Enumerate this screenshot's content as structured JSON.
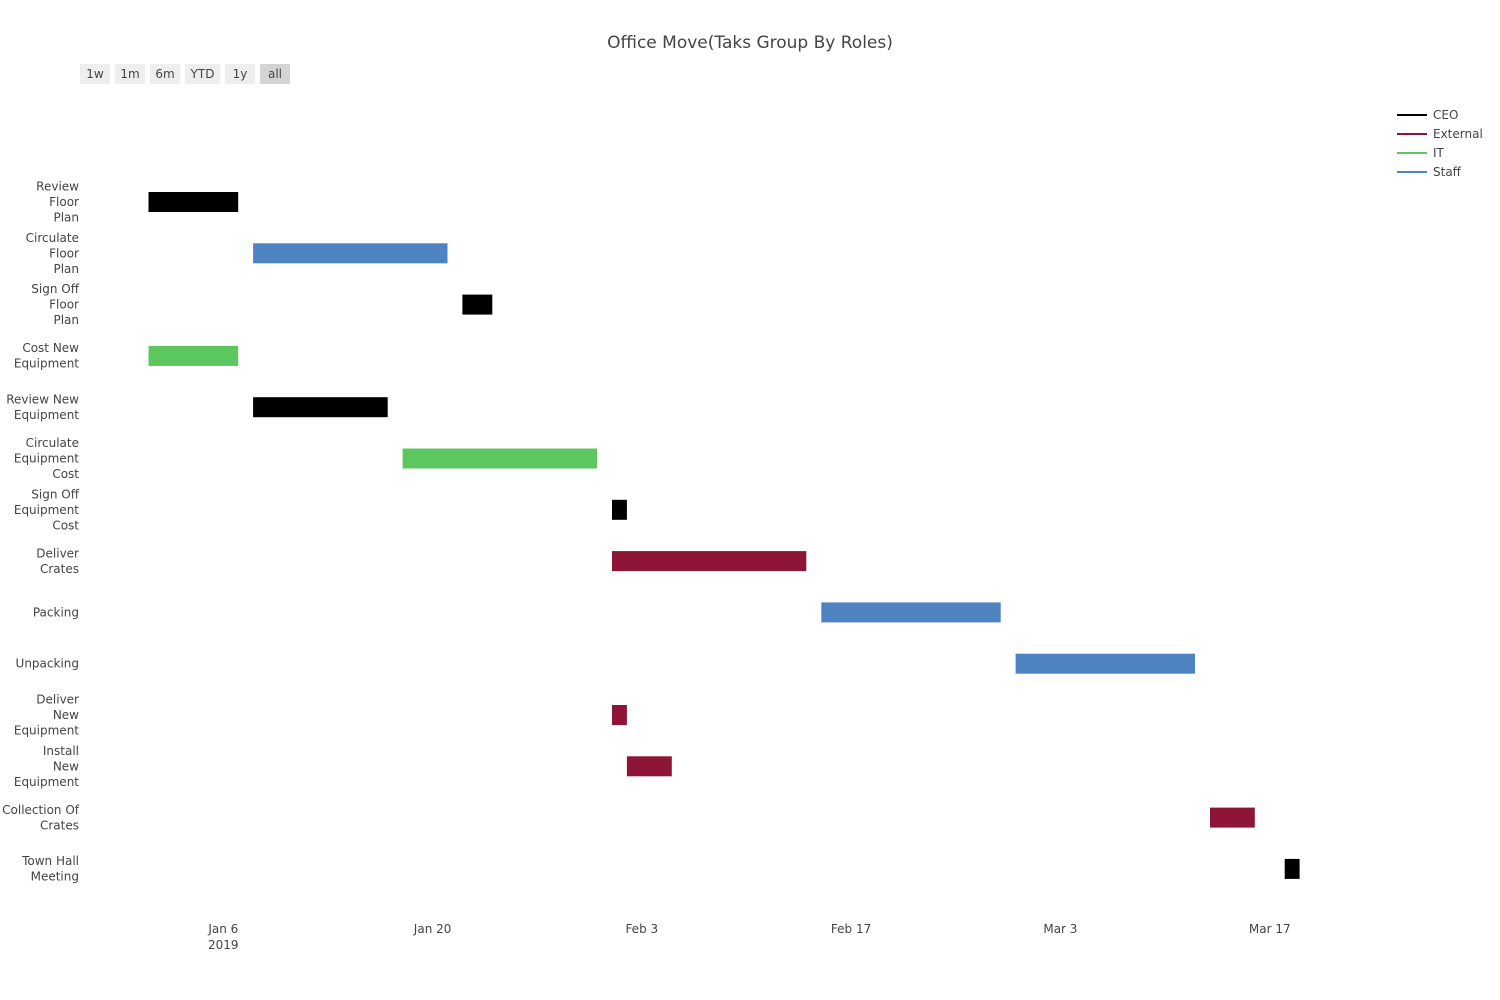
{
  "chart": {
    "title": "Office Move(Taks Group By Roles)",
    "range_buttons": [
      {
        "label": "1w",
        "active": false
      },
      {
        "label": "1m",
        "active": false
      },
      {
        "label": "6m",
        "active": false
      },
      {
        "label": "YTD",
        "active": false
      },
      {
        "label": "1y",
        "active": false
      },
      {
        "label": "all",
        "active": true
      }
    ],
    "legend": [
      {
        "label": "CEO",
        "color": "#000000"
      },
      {
        "label": "External",
        "color": "#8e1537"
      },
      {
        "label": "IT",
        "color": "#5bc75e"
      },
      {
        "label": "Staff",
        "color": "#4f83c1"
      }
    ]
  },
  "chart_data": {
    "type": "gantt",
    "title": "Office Move(Taks Group By Roles)",
    "xlabel": "",
    "ylabel": "",
    "x_axis": {
      "type": "date",
      "range": [
        "2019-01-01",
        "2019-03-30"
      ],
      "ticks": [
        {
          "date": "2019-01-06",
          "label": "Jan 6",
          "sublabel": "2019"
        },
        {
          "date": "2019-01-20",
          "label": "Jan 20",
          "sublabel": ""
        },
        {
          "date": "2019-02-03",
          "label": "Feb 3",
          "sublabel": ""
        },
        {
          "date": "2019-02-17",
          "label": "Feb 17",
          "sublabel": ""
        },
        {
          "date": "2019-03-03",
          "label": "Mar 3",
          "sublabel": ""
        },
        {
          "date": "2019-03-17",
          "label": "Mar 17",
          "sublabel": ""
        }
      ]
    },
    "grid": false,
    "legend_position": "top-right",
    "tasks": [
      {
        "task": "Review Floor Plan",
        "label_lines": [
          "Review",
          "Floor",
          "Plan"
        ],
        "role": "CEO",
        "start": "2019-01-01",
        "finish": "2019-01-07"
      },
      {
        "task": "Circulate Floor Plan",
        "label_lines": [
          "Circulate",
          "Floor",
          "Plan"
        ],
        "role": "Staff",
        "start": "2019-01-08",
        "finish": "2019-01-21"
      },
      {
        "task": "Sign Off Floor Plan",
        "label_lines": [
          "Sign Off",
          "Floor",
          "Plan"
        ],
        "role": "CEO",
        "start": "2019-01-22",
        "finish": "2019-01-24"
      },
      {
        "task": "Cost New Equipment",
        "label_lines": [
          "Cost New",
          "Equipment"
        ],
        "role": "IT",
        "start": "2019-01-01",
        "finish": "2019-01-07"
      },
      {
        "task": "Review New Equipment",
        "label_lines": [
          "Review New",
          "Equipment"
        ],
        "role": "CEO",
        "start": "2019-01-08",
        "finish": "2019-01-17"
      },
      {
        "task": "Circulate Equipment Cost",
        "label_lines": [
          "Circulate",
          "Equipment",
          "Cost"
        ],
        "role": "IT",
        "start": "2019-01-18",
        "finish": "2019-01-31"
      },
      {
        "task": "Sign Off Equipment Cost",
        "label_lines": [
          "Sign Off",
          "Equipment",
          "Cost"
        ],
        "role": "CEO",
        "start": "2019-02-01",
        "finish": "2019-02-02"
      },
      {
        "task": "Deliver Crates",
        "label_lines": [
          "Deliver",
          "Crates"
        ],
        "role": "External",
        "start": "2019-02-01",
        "finish": "2019-02-14"
      },
      {
        "task": "Packing",
        "label_lines": [
          "Packing"
        ],
        "role": "Staff",
        "start": "2019-02-15",
        "finish": "2019-02-27"
      },
      {
        "task": "Unpacking",
        "label_lines": [
          "Unpacking"
        ],
        "role": "Staff",
        "start": "2019-02-28",
        "finish": "2019-03-12"
      },
      {
        "task": "Deliver New Equipment",
        "label_lines": [
          "Deliver",
          "New",
          "Equipment"
        ],
        "role": "External",
        "start": "2019-02-01",
        "finish": "2019-02-02"
      },
      {
        "task": "Install New Equipment",
        "label_lines": [
          "Install",
          "New",
          "Equipment"
        ],
        "role": "External",
        "start": "2019-02-02",
        "finish": "2019-02-05"
      },
      {
        "task": "Collection Of Crates",
        "label_lines": [
          "Collection Of",
          "Crates"
        ],
        "role": "External",
        "start": "2019-03-13",
        "finish": "2019-03-16"
      },
      {
        "task": "Town Hall Meeting",
        "label_lines": [
          "Town Hall",
          "Meeting"
        ],
        "role": "CEO",
        "start": "2019-03-18",
        "finish": "2019-03-19"
      }
    ]
  }
}
